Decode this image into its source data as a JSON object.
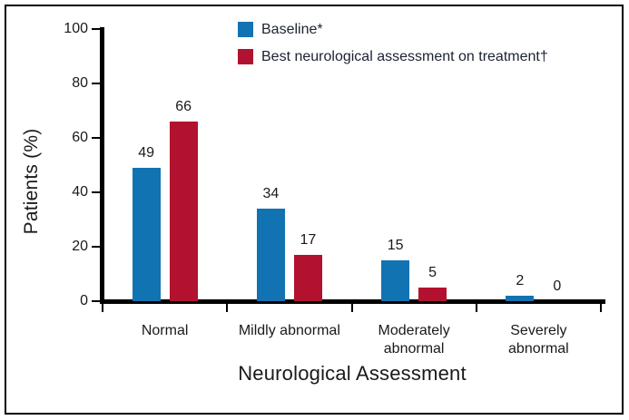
{
  "figure": {
    "background": "#ffffff",
    "border_color": "#000000",
    "axis_color": "#000000",
    "text_color": "#1a1a1a"
  },
  "chart_data": {
    "type": "bar",
    "title": "",
    "xlabel": "Neurological Assessment",
    "ylabel": "Patients (%)",
    "categories": [
      "Normal",
      "Mildly abnormal",
      "Moderately abnormal",
      "Severely abnormal"
    ],
    "series": [
      {
        "name": "Baseline*",
        "color": "#1173B2",
        "values": [
          49,
          34,
          15,
          2
        ]
      },
      {
        "name": "Best neurological assessment on treatment†",
        "color": "#B2122F",
        "values": [
          66,
          17,
          5,
          0
        ]
      }
    ],
    "ylim": [
      0,
      100
    ],
    "yticks": [
      0,
      20,
      40,
      60,
      80,
      100
    ],
    "grid": false,
    "bar_value_labels": true,
    "legend_position": "top-center"
  }
}
